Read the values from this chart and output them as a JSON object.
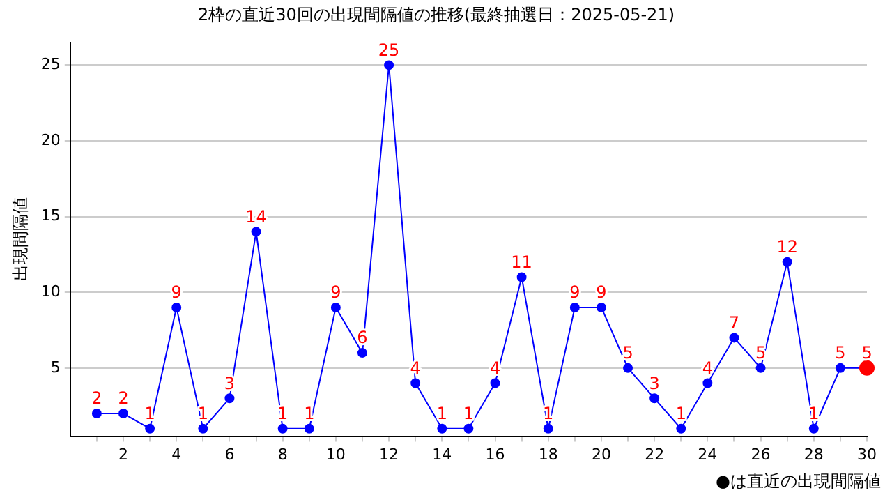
{
  "chart_data": {
    "type": "line",
    "title": "2枠の直近30回の出現間隔値の推移(最終抽選日：2025-05-21)",
    "ylabel": "出現間隔値",
    "x": [
      1,
      2,
      3,
      4,
      5,
      6,
      7,
      8,
      9,
      10,
      11,
      12,
      13,
      14,
      15,
      16,
      17,
      18,
      19,
      20,
      21,
      22,
      23,
      24,
      25,
      26,
      27,
      28,
      29,
      30
    ],
    "series": [
      {
        "color": "#0000ff",
        "values": [
          2,
          2,
          1,
          9,
          1,
          3,
          14,
          1,
          1,
          9,
          6,
          25,
          4,
          1,
          1,
          4,
          11,
          1,
          9,
          9,
          5,
          3,
          1,
          4,
          7,
          5,
          12,
          1,
          5,
          5
        ],
        "colors": [
          "#0000ff",
          "#0000ff",
          "#0000ff",
          "#0000ff",
          "#0000ff",
          "#0000ff",
          "#0000ff",
          "#0000ff",
          "#0000ff",
          "#0000ff",
          "#0000ff",
          "#0000ff",
          "#0000ff",
          "#0000ff",
          "#0000ff",
          "#0000ff",
          "#0000ff",
          "#0000ff",
          "#0000ff",
          "#0000ff",
          "#0000ff",
          "#0000ff",
          "#0000ff",
          "#0000ff",
          "#0000ff",
          "#0000ff",
          "#0000ff",
          "#0000ff",
          "#0000ff",
          "#ff0000"
        ]
      }
    ],
    "xlim": [
      0,
      30
    ],
    "xticks": [
      {
        "value": 1,
        "label": null
      },
      2,
      {
        "value": 3,
        "label": null
      },
      4,
      {
        "value": 5,
        "label": null
      },
      6,
      {
        "value": 7,
        "label": null
      },
      8,
      {
        "value": 9,
        "label": null
      },
      10,
      {
        "value": 11,
        "label": null
      },
      12,
      {
        "value": 13,
        "label": null
      },
      14,
      {
        "value": 15,
        "label": null
      },
      16,
      {
        "value": 17,
        "label": null
      },
      18,
      {
        "value": 19,
        "label": null
      },
      20,
      {
        "value": 21,
        "label": null
      },
      22,
      {
        "value": 23,
        "label": null
      },
      24,
      {
        "value": 25,
        "label": null
      },
      26,
      {
        "value": 27,
        "label": null
      },
      28,
      {
        "value": 29,
        "label": null
      },
      30
    ],
    "ylim": [
      0.5,
      26.5
    ],
    "yticks": [
      5,
      10,
      15,
      20,
      25
    ],
    "grid": "y",
    "marker": "circle",
    "line_style": "solid",
    "data_labels": true,
    "legend": false,
    "annotations": [
      "●は直近の出現間隔値"
    ]
  }
}
